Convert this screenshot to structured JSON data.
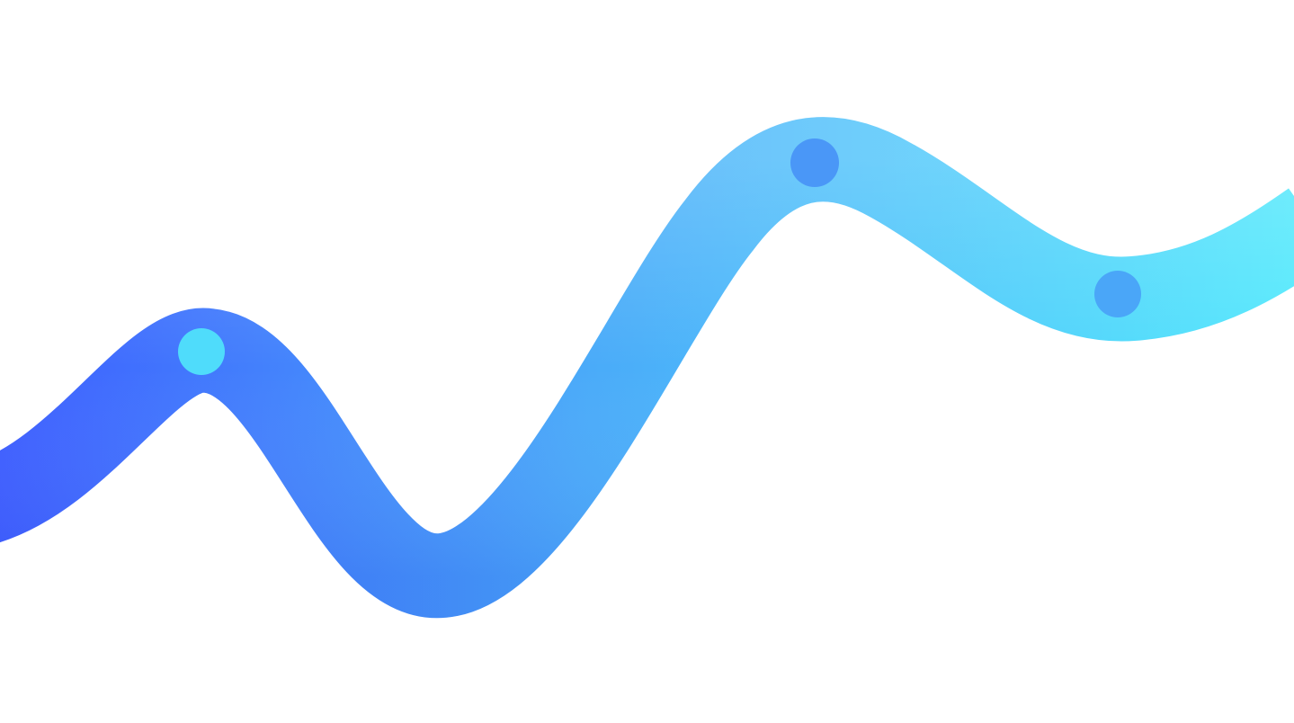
{
  "colors": {
    "background": "#ffffff",
    "ribbon_start": "#3d5cff",
    "ribbon_mid": "#4aaaf9",
    "ribbon_end": "#55eafc",
    "dot_1": "#4fdcfb",
    "dot_2": "#4a97f7",
    "dot_3": "#4aa6f8"
  },
  "icons": {
    "ribbon": "wavy-ribbon-icon",
    "dots": [
      "circle-marker-icon",
      "circle-marker-icon",
      "circle-marker-icon"
    ]
  }
}
